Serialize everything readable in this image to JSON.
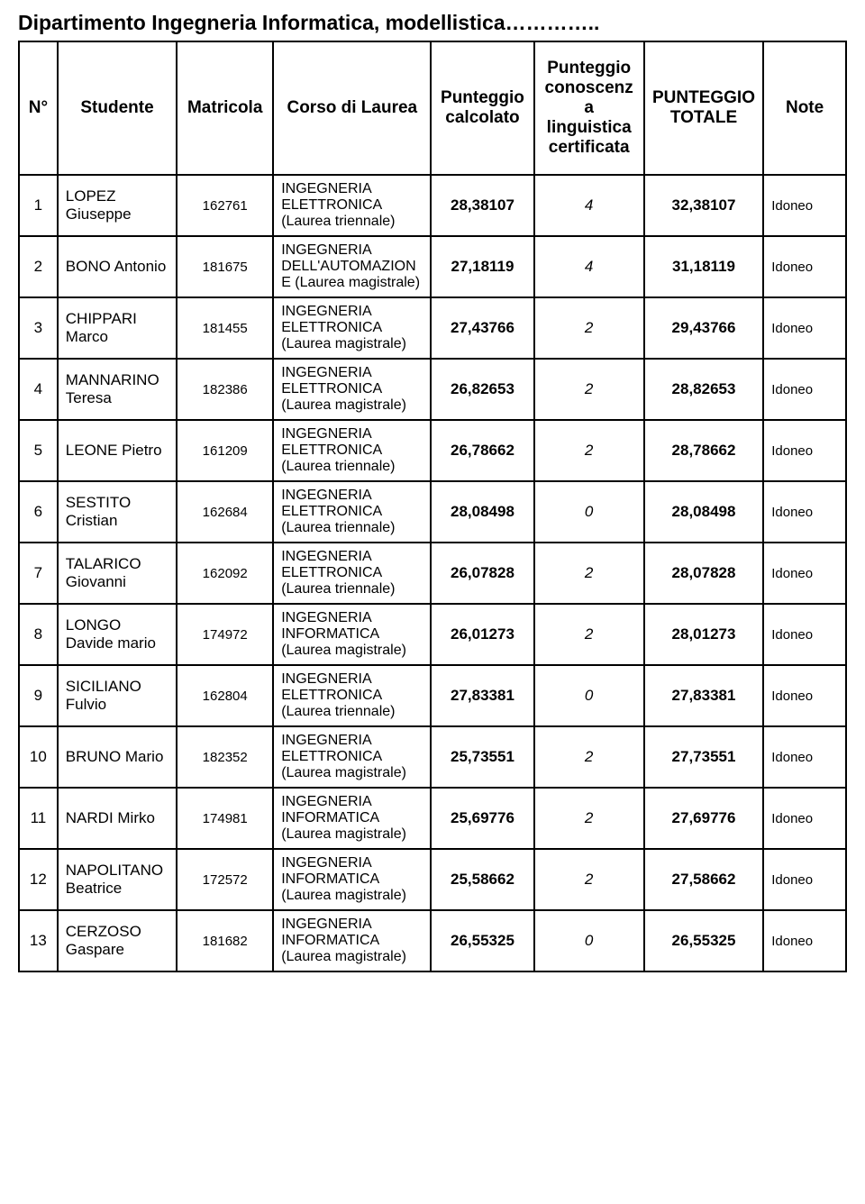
{
  "title": "Dipartimento Ingegneria Informatica, modellistica…………..",
  "columns": {
    "n": "N°",
    "studente": "Studente",
    "matricola": "Matricola",
    "corso": "Corso di Laurea",
    "calcolato": "Punteggio calcolato",
    "linguistica": "Punteggio conoscenza linguistica certificata",
    "totale": "PUNTEGGIO TOTALE",
    "note": "Note"
  },
  "rows": [
    {
      "n": "1",
      "studente": "LOPEZ Giuseppe",
      "matricola": "162761",
      "corso": "INGEGNERIA ELETTRONICA (Laurea triennale)",
      "calcolato": "28,38107",
      "ling": "4",
      "totale": "32,38107",
      "note": "Idoneo",
      "gap": true
    },
    {
      "n": "2",
      "studente": "BONO Antonio",
      "matricola": "181675",
      "corso": "INGEGNERIA DELL'AUTOMAZIONE (Laurea magistrale)",
      "calcolato": "27,18119",
      "ling": "4",
      "totale": "31,18119",
      "note": "Idoneo",
      "gap": false
    },
    {
      "n": "3",
      "studente": "CHIPPARI Marco",
      "matricola": "181455",
      "corso": "INGEGNERIA ELETTRONICA (Laurea magistrale)",
      "calcolato": "27,43766",
      "ling": "2",
      "totale": "29,43766",
      "note": "Idoneo",
      "gap": false
    },
    {
      "n": "4",
      "studente": "MANNARINO Teresa",
      "matricola": "182386",
      "corso": "INGEGNERIA ELETTRONICA (Laurea magistrale)",
      "calcolato": "26,82653",
      "ling": "2",
      "totale": "28,82653",
      "note": "Idoneo",
      "gap": true
    },
    {
      "n": "5",
      "studente": "LEONE Pietro",
      "matricola": "161209",
      "corso": "INGEGNERIA ELETTRONICA (Laurea triennale)",
      "calcolato": "26,78662",
      "ling": "2",
      "totale": "28,78662",
      "note": "Idoneo",
      "gap": true
    },
    {
      "n": "6",
      "studente": "SESTITO Cristian",
      "matricola": "162684",
      "corso": "INGEGNERIA ELETTRONICA (Laurea triennale)",
      "calcolato": "28,08498",
      "ling": "0",
      "totale": "28,08498",
      "note": "Idoneo",
      "gap": true
    },
    {
      "n": "7",
      "studente": "TALARICO Giovanni",
      "matricola": "162092",
      "corso": "INGEGNERIA ELETTRONICA (Laurea triennale)",
      "calcolato": "26,07828",
      "ling": "2",
      "totale": "28,07828",
      "note": "Idoneo",
      "gap": true
    },
    {
      "n": "8",
      "studente": "LONGO Davide mario",
      "matricola": "174972",
      "corso": "INGEGNERIA INFORMATICA (Laurea magistrale)",
      "calcolato": "26,01273",
      "ling": "2",
      "totale": "28,01273",
      "note": "Idoneo",
      "gap": true
    },
    {
      "n": "9",
      "studente": "SICILIANO Fulvio",
      "matricola": "162804",
      "corso": "INGEGNERIA ELETTRONICA (Laurea triennale)",
      "calcolato": "27,83381",
      "ling": "0",
      "totale": "27,83381",
      "note": "Idoneo",
      "gap": true
    },
    {
      "n": "10",
      "studente": "BRUNO Mario",
      "matricola": "182352",
      "corso": "INGEGNERIA ELETTRONICA (Laurea magistrale)",
      "calcolato": "25,73551",
      "ling": "2",
      "totale": "27,73551",
      "note": "Idoneo",
      "gap": false
    },
    {
      "n": "11",
      "studente": "NARDI Mirko",
      "matricola": "174981",
      "corso": "INGEGNERIA INFORMATICA (Laurea magistrale)",
      "calcolato": "25,69776",
      "ling": "2",
      "totale": "27,69776",
      "note": "Idoneo",
      "gap": false
    },
    {
      "n": "12",
      "studente": "NAPOLITANO Beatrice",
      "matricola": "172572",
      "corso": "INGEGNERIA INFORMATICA (Laurea magistrale)",
      "calcolato": "25,58662",
      "ling": "2",
      "totale": "27,58662",
      "note": "Idoneo",
      "gap": false
    },
    {
      "n": "13",
      "studente": "CERZOSO Gaspare",
      "matricola": "181682",
      "corso": "INGEGNERIA INFORMATICA (Laurea magistrale)",
      "calcolato": "26,55325",
      "ling": "0",
      "totale": "26,55325",
      "note": "Idoneo",
      "gap": false
    }
  ],
  "style": {
    "background_color": "#ffffff",
    "border_color": "#000000",
    "title_fontsize": 23,
    "header_fontsize": 19,
    "cell_fontsize": 17
  }
}
